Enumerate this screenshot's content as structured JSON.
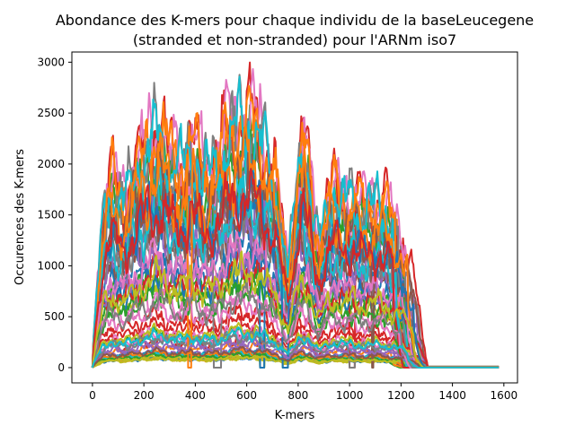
{
  "chart_data": {
    "type": "line",
    "title": "Abondance des K-mers pour chaque individu de la baseLeucegene\n(stranded et non-stranded) pour l'ARNm iso7",
    "xlabel": "K-mers",
    "ylabel": "Occurences des K-mers",
    "xlim": [
      -80,
      1653
    ],
    "ylim": [
      -150,
      3100
    ],
    "xticks": [
      0,
      200,
      400,
      600,
      800,
      1000,
      1200,
      1400,
      1600
    ],
    "yticks": [
      0,
      500,
      1000,
      1500,
      2000,
      2500,
      3000
    ],
    "grid": false,
    "legend": "none",
    "series_count_shown": 60,
    "series_colors": [
      "#1f77b4",
      "#ff7f0e",
      "#2ca02c",
      "#d62728",
      "#9467bd",
      "#8c564b",
      "#e377c2",
      "#7f7f7f",
      "#bcbd22",
      "#17becf"
    ],
    "profile": {
      "x": [
        0,
        20,
        40,
        60,
        80,
        100,
        120,
        140,
        160,
        180,
        200,
        220,
        240,
        260,
        280,
        300,
        320,
        340,
        360,
        380,
        400,
        420,
        440,
        460,
        480,
        500,
        520,
        540,
        560,
        580,
        600,
        620,
        640,
        660,
        680,
        700,
        720,
        740,
        760,
        780,
        800,
        820,
        840,
        860,
        880,
        900,
        920,
        940,
        960,
        980,
        1000,
        1020,
        1040,
        1060,
        1080,
        1100,
        1120,
        1140,
        1160,
        1180,
        1200,
        1220,
        1240,
        1260,
        1280,
        1300,
        1320,
        1340,
        1360,
        1380,
        1400,
        1420,
        1440,
        1460,
        1480,
        1500,
        1520,
        1540,
        1560,
        1580
      ],
      "y": [
        0.05,
        0.35,
        0.62,
        0.78,
        0.8,
        0.74,
        0.7,
        0.76,
        0.84,
        0.88,
        0.9,
        0.93,
        0.98,
        1.02,
        0.97,
        0.9,
        0.86,
        0.84,
        0.88,
        0.95,
        0.93,
        0.85,
        0.82,
        0.84,
        0.87,
        0.92,
        0.97,
        1.0,
        1.03,
        1.05,
        1.06,
        1.04,
        1.0,
        0.96,
        0.9,
        0.82,
        0.75,
        0.55,
        0.42,
        0.6,
        0.88,
        0.95,
        0.86,
        0.64,
        0.52,
        0.63,
        0.74,
        0.76,
        0.72,
        0.7,
        0.73,
        0.74,
        0.7,
        0.68,
        0.68,
        0.7,
        0.7,
        0.68,
        0.64,
        0.6,
        0.55,
        0.5,
        0.42,
        0.3,
        0.16,
        0.06,
        0.02,
        0.01,
        0.005,
        0.003,
        0.002,
        0.002,
        0.002,
        0.002,
        0.002,
        0.002,
        0.002,
        0.002,
        0.002,
        0.002
      ]
    }
  }
}
